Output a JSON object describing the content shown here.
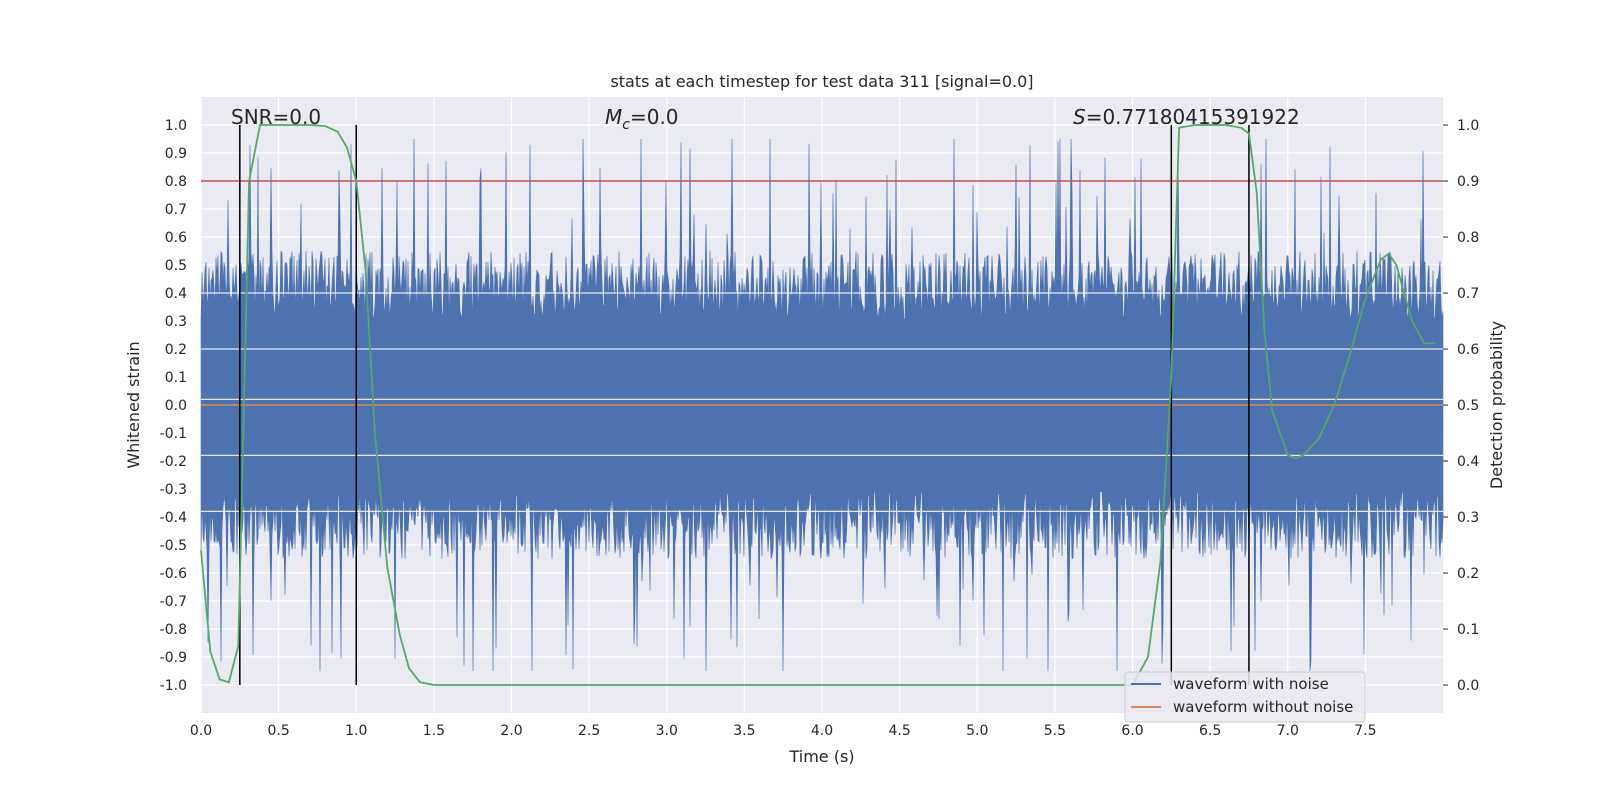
{
  "chart_data": {
    "type": "line",
    "title": "stats at each timestep for test data 311 [signal=0.0]",
    "xlabel": "Time (s)",
    "ylabel": "Whitened strain",
    "y2label": "Detection probability",
    "xlim": [
      0.0,
      8.0
    ],
    "ylim": [
      -1.1,
      1.1
    ],
    "y2lim": [
      -0.05,
      1.05
    ],
    "x_ticks": [
      "0.0",
      "0.5",
      "1.0",
      "1.5",
      "2.0",
      "2.5",
      "3.0",
      "3.5",
      "4.0",
      "4.5",
      "5.0",
      "5.5",
      "6.0",
      "6.5",
      "7.0",
      "7.5"
    ],
    "y_ticks": [
      "1.0",
      "0.9",
      "0.8",
      "0.7",
      "0.6",
      "0.5",
      "0.4",
      "0.3",
      "0.2",
      "0.1",
      "0.0",
      "-0.1",
      "-0.2",
      "-0.3",
      "-0.4",
      "-0.5",
      "-0.6",
      "-0.7",
      "-0.8",
      "-0.9",
      "-1.0"
    ],
    "y2_ticks": [
      "1.0",
      "0.9",
      "0.8",
      "0.7",
      "0.6",
      "0.5",
      "0.4",
      "0.3",
      "0.2",
      "0.1",
      "0.0"
    ],
    "grid": true,
    "legend_position": "lower-right",
    "annotations": {
      "snr": "SNR=0.0",
      "mc_symbol": "M",
      "mc_sub": "c",
      "mc_value": "=0.0",
      "s_symbol": "S",
      "s_value": "=0.77180415391922"
    },
    "threshold_line": {
      "axis": "y2",
      "value": 0.9,
      "color": "#c44e52"
    },
    "vertical_markers": [
      0.25,
      1.0,
      6.25,
      6.75
    ],
    "series": [
      {
        "name": "waveform with noise",
        "axis": "y",
        "color": "#4c72b0",
        "kind": "noise",
        "typical_amplitude": 0.55,
        "peak_amplitude": 0.95
      },
      {
        "name": "waveform without noise",
        "axis": "y",
        "color": "#dd8452",
        "x": [
          0.0,
          8.0
        ],
        "y": [
          0.0,
          0.0
        ]
      },
      {
        "axis": "y2",
        "color": "#55a868",
        "x": [
          0.0,
          0.06,
          0.12,
          0.18,
          0.24,
          0.27,
          0.31,
          0.38,
          0.5,
          0.6,
          0.7,
          0.8,
          0.88,
          0.94,
          1.0,
          1.06,
          1.12,
          1.2,
          1.28,
          1.34,
          1.41,
          1.5,
          2.0,
          3.0,
          4.0,
          5.0,
          6.0,
          6.1,
          6.18,
          6.25,
          6.3,
          6.4,
          6.5,
          6.6,
          6.7,
          6.75,
          6.8,
          6.85,
          6.9,
          6.95,
          7.0,
          7.05,
          7.1,
          7.2,
          7.3,
          7.4,
          7.5,
          7.6,
          7.65,
          7.7,
          7.75,
          7.8,
          7.88,
          7.95
        ],
        "y": [
          0.24,
          0.06,
          0.01,
          0.005,
          0.07,
          0.42,
          0.9,
          1.0,
          1.0,
          1.0,
          1.0,
          0.998,
          0.988,
          0.96,
          0.9,
          0.74,
          0.45,
          0.21,
          0.09,
          0.03,
          0.005,
          0.0,
          0.0,
          0.0,
          0.0,
          0.0,
          0.0,
          0.05,
          0.22,
          0.55,
          0.995,
          1.0,
          1.0,
          1.0,
          0.995,
          0.985,
          0.88,
          0.63,
          0.49,
          0.45,
          0.41,
          0.405,
          0.41,
          0.44,
          0.5,
          0.59,
          0.69,
          0.76,
          0.77,
          0.75,
          0.7,
          0.65,
          0.61,
          0.61
        ]
      }
    ]
  }
}
